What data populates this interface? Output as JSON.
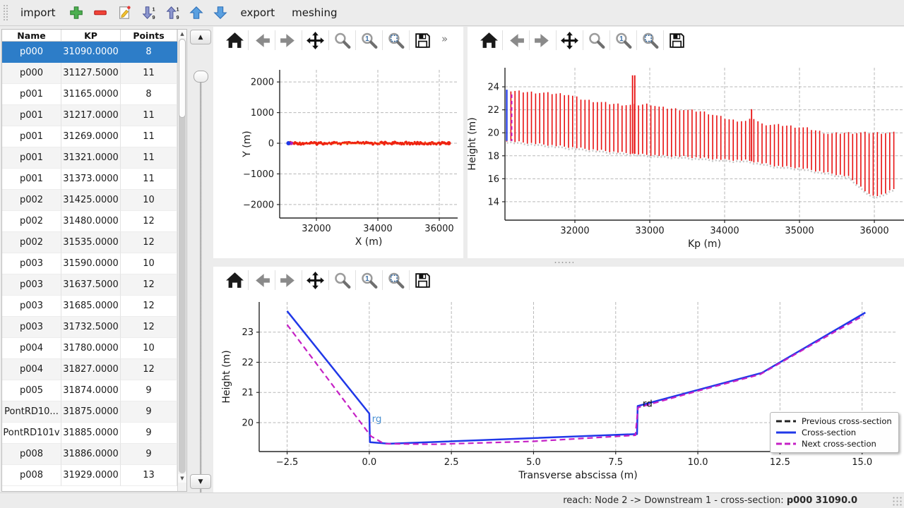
{
  "main_toolbar": {
    "items": [
      {
        "type": "button",
        "label": "import",
        "name": "import-button"
      },
      {
        "type": "icon",
        "icon": "add",
        "name": "add-cross-section-button"
      },
      {
        "type": "icon",
        "icon": "remove",
        "name": "remove-cross-section-button"
      },
      {
        "type": "icon",
        "icon": "edit",
        "name": "edit-cross-section-button"
      },
      {
        "type": "icon",
        "icon": "sort-desc",
        "name": "sort-descending-button"
      },
      {
        "type": "icon",
        "icon": "sort-asc",
        "name": "sort-ascending-button"
      },
      {
        "type": "icon",
        "icon": "move-up",
        "name": "move-up-button"
      },
      {
        "type": "icon",
        "icon": "move-down",
        "name": "move-down-button"
      },
      {
        "type": "button",
        "label": "export",
        "name": "export-button"
      },
      {
        "type": "button",
        "label": "meshing",
        "name": "meshing-button"
      }
    ]
  },
  "table": {
    "headers": [
      "Name",
      "KP",
      "Points"
    ],
    "selected_row": 0,
    "rows": [
      [
        "p000",
        "31090.0000",
        "8"
      ],
      [
        "p000",
        "31127.5000",
        "11"
      ],
      [
        "p001",
        "31165.0000",
        "8"
      ],
      [
        "p001",
        "31217.0000",
        "11"
      ],
      [
        "p001",
        "31269.0000",
        "11"
      ],
      [
        "p001",
        "31321.0000",
        "11"
      ],
      [
        "p001",
        "31373.0000",
        "11"
      ],
      [
        "p002",
        "31425.0000",
        "10"
      ],
      [
        "p002",
        "31480.0000",
        "12"
      ],
      [
        "p002",
        "31535.0000",
        "12"
      ],
      [
        "p003",
        "31590.0000",
        "10"
      ],
      [
        "p003",
        "31637.5000",
        "12"
      ],
      [
        "p003",
        "31685.0000",
        "12"
      ],
      [
        "p003",
        "31732.5000",
        "12"
      ],
      [
        "p004",
        "31780.0000",
        "10"
      ],
      [
        "p004",
        "31827.0000",
        "12"
      ],
      [
        "p005",
        "31874.0000",
        "9"
      ],
      [
        "PontRD10...",
        "31875.0000",
        "9"
      ],
      [
        "PontRD101v",
        "31885.0000",
        "9"
      ],
      [
        "p008",
        "31886.0000",
        "9"
      ],
      [
        "p008",
        "31929.0000",
        "13"
      ]
    ]
  },
  "plot_toolbar": {
    "icons": [
      "home",
      "back",
      "forward",
      "pan",
      "zoom",
      "zoom-one",
      "zoom-fit",
      "save"
    ],
    "overflow": "»"
  },
  "chart_data": [
    {
      "id": "plan_view",
      "type": "scatter",
      "xlabel": "X (m)",
      "ylabel": "Y (m)",
      "xlim": [
        30805,
        36598
      ],
      "ylim": [
        -2440,
        2395
      ],
      "xticks": [
        32000,
        34000,
        36000
      ],
      "yticks": [
        -2000,
        -1000,
        0,
        1000,
        2000
      ],
      "grid": true,
      "series": [
        {
          "name": "reach-line",
          "type": "line",
          "color": "#ff9030",
          "points": [
            [
              31090,
              0
            ],
            [
              36310,
              0
            ]
          ]
        },
        {
          "name": "cross-section-points",
          "type": "scatter-band",
          "color": "#ee2211",
          "x_start": 31090,
          "x_end": 36310,
          "y": 0,
          "count": 170
        },
        {
          "name": "selected-point",
          "type": "scatter",
          "color": "#2038e8",
          "edge": "#b020c0",
          "points": [
            [
              31090,
              0
            ]
          ]
        }
      ]
    },
    {
      "id": "longitudinal",
      "type": "bar-range",
      "xlabel": "Kp (m)",
      "ylabel": "Height (m)",
      "xlim": [
        31066,
        36396
      ],
      "ylim": [
        12.4,
        25.66
      ],
      "xticks": [
        32000,
        33000,
        34000,
        35000,
        36000
      ],
      "yticks": [
        14,
        16,
        18,
        20,
        22,
        24
      ],
      "grid": true,
      "bar_color": "#e81010",
      "bottom_envelope_color": "#c8c8c8",
      "kp_start": 31090,
      "kp_end": 36260,
      "kp_spacing": 55,
      "top_profile_knots": [
        [
          31090,
          23.65
        ],
        [
          31900,
          23.35
        ],
        [
          32100,
          22.9
        ],
        [
          32450,
          22.55
        ],
        [
          32750,
          22.4
        ],
        [
          33000,
          22.5
        ],
        [
          33150,
          22.2
        ],
        [
          33700,
          21.85
        ],
        [
          34100,
          21.1
        ],
        [
          34300,
          21.0
        ],
        [
          34380,
          21.3
        ],
        [
          34500,
          20.75
        ],
        [
          34800,
          20.65
        ],
        [
          35100,
          20.4
        ],
        [
          35400,
          19.9
        ],
        [
          35600,
          20.0
        ],
        [
          36260,
          20.0
        ]
      ],
      "bottom_profile_knots": [
        [
          31090,
          19.3
        ],
        [
          32000,
          18.7
        ],
        [
          32500,
          18.35
        ],
        [
          33000,
          18.05
        ],
        [
          33500,
          17.9
        ],
        [
          34000,
          17.65
        ],
        [
          34300,
          17.6
        ],
        [
          34700,
          17.1
        ],
        [
          35000,
          16.95
        ],
        [
          35300,
          16.6
        ],
        [
          35650,
          16.2
        ],
        [
          35800,
          15.4
        ],
        [
          35950,
          14.5
        ],
        [
          36100,
          14.6
        ],
        [
          36260,
          15.1
        ]
      ],
      "spikes": [
        [
          32770,
          25.0
        ],
        [
          32800,
          25.0
        ],
        [
          34360,
          22.05
        ]
      ],
      "selected": {
        "kp": 31090,
        "color": "#2038e8"
      },
      "next": {
        "kp": 31127.5,
        "color": "#c520c5"
      }
    },
    {
      "id": "cross_section",
      "type": "line",
      "xlabel": "Transverse abscissa (m)",
      "ylabel": "Height (m)",
      "xlim": [
        -3.35,
        16.06
      ],
      "ylim": [
        19.04,
        24.0
      ],
      "xticks": [
        -2.5,
        0.0,
        2.5,
        5.0,
        7.5,
        10.0,
        12.5,
        15.0
      ],
      "xtick_decimals": 1,
      "yticks": [
        20,
        21,
        22,
        23
      ],
      "grid": true,
      "series": [
        {
          "name": "Previous cross-section",
          "color": "#222222",
          "dash": true,
          "points": []
        },
        {
          "name": "Cross-section",
          "color": "#2038e8",
          "dash": false,
          "points": [
            [
              -2.5,
              23.7
            ],
            [
              0.0,
              20.3
            ],
            [
              0.02,
              19.35
            ],
            [
              0.6,
              19.3
            ],
            [
              8.15,
              19.62
            ],
            [
              8.17,
              20.55
            ],
            [
              11.95,
              21.65
            ],
            [
              15.1,
              23.65
            ]
          ]
        },
        {
          "name": "Next cross-section",
          "color": "#c520c5",
          "dash": true,
          "points": [
            [
              -2.5,
              23.25
            ],
            [
              0.05,
              19.55
            ],
            [
              0.45,
              19.3
            ],
            [
              2.0,
              19.28
            ],
            [
              5.0,
              19.38
            ],
            [
              8.1,
              19.58
            ],
            [
              8.18,
              20.5
            ],
            [
              10.0,
              21.05
            ],
            [
              11.9,
              21.6
            ],
            [
              13.5,
              22.6
            ],
            [
              15.05,
              23.55
            ]
          ]
        }
      ],
      "annotations": [
        {
          "text": "rg",
          "x": 0.08,
          "y": 20.02,
          "color": "#4a90d2"
        },
        {
          "text": "rd",
          "x": 8.32,
          "y": 20.52,
          "color": "#111111"
        }
      ],
      "legend": {
        "position": "lower-right",
        "entries": [
          "Previous cross-section",
          "Cross-section",
          "Next cross-section"
        ]
      }
    }
  ],
  "status_bar": {
    "prefix": "reach: Node 2 -> Downstream 1 - cross-section: ",
    "highlight": "p000 31090.0"
  }
}
